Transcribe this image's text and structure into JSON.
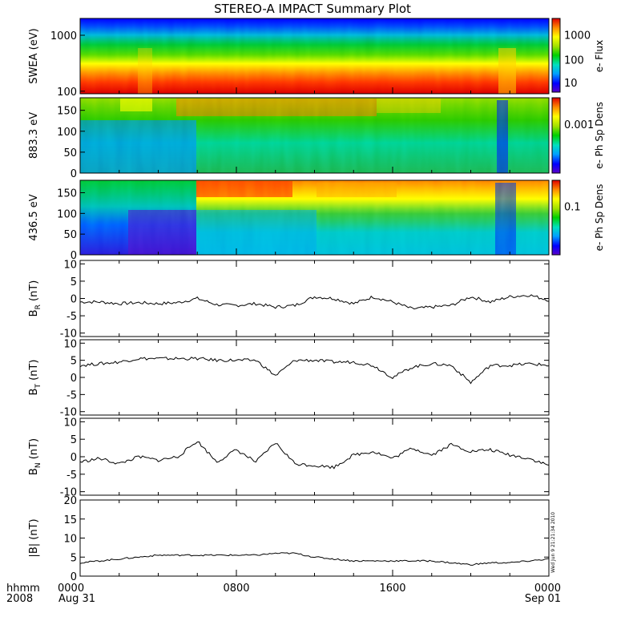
{
  "title": "STEREO-A IMPACT Summary Plot",
  "footer": {
    "format_label": "hhmm",
    "year_label": "2008",
    "date_start": "Aug 31",
    "date_end": "Sep 01",
    "timestamp": "Wed Jun  9 21:21:34 2010"
  },
  "colors": {
    "palette": [
      "#5a00c8",
      "#0000ff",
      "#00a0ff",
      "#00e0c0",
      "#00d000",
      "#a0e000",
      "#ffff00",
      "#ff9000",
      "#e00000"
    ],
    "line": "#000000",
    "background": "#ffffff"
  },
  "chart_data": [
    {
      "type": "heatmap",
      "ylabel": "SWEA (eV)",
      "colorbar_label": "e- Flux",
      "colorbar_ticks": [
        "1000",
        "100",
        "10"
      ],
      "yticks": [
        "1000",
        "100"
      ],
      "yscale": "log",
      "ylim": [
        90,
        2000
      ],
      "description_levels": "high flux at low energy, low flux above ~1000 eV"
    },
    {
      "type": "heatmap",
      "ylabel": "883.3 eV",
      "colorbar_label": "e- Ph Sp Dens",
      "colorbar_ticks": [
        "0.001"
      ],
      "yticks": [
        "0",
        "50",
        "100",
        "150"
      ],
      "ylim": [
        0,
        180
      ]
    },
    {
      "type": "heatmap",
      "ylabel": "436.5 eV",
      "colorbar_label": "e- Ph Sp Dens",
      "colorbar_ticks": [
        "0.1"
      ],
      "yticks": [
        "0",
        "50",
        "100",
        "150"
      ],
      "ylim": [
        0,
        180
      ]
    },
    {
      "type": "line",
      "ylabel": "B",
      "ylabel_sub": "R",
      "ylabel_unit": " (nT)",
      "yticks": [
        "10",
        "5",
        "0",
        "-5",
        "-10"
      ],
      "ylim": [
        -11,
        11
      ],
      "x": [
        0,
        1,
        2,
        3,
        4,
        5,
        6,
        7,
        8,
        9,
        10,
        11,
        12,
        13,
        14,
        15,
        16,
        17,
        18,
        19,
        20,
        21,
        22,
        23,
        24
      ],
      "values": [
        -1,
        -1,
        -1.5,
        -1.2,
        -1.5,
        -1.2,
        0,
        -1.8,
        -2,
        -1.5,
        -2.5,
        -2,
        0.5,
        0,
        -1.5,
        0.5,
        -1,
        -3,
        -2.5,
        -2,
        0.5,
        -1,
        0.5,
        1,
        -0.5
      ]
    },
    {
      "type": "line",
      "ylabel": "B",
      "ylabel_sub": "T",
      "ylabel_unit": " (nT)",
      "yticks": [
        "10",
        "5",
        "0",
        "-5",
        "-10"
      ],
      "ylim": [
        -11,
        11
      ],
      "x": [
        0,
        1,
        2,
        3,
        4,
        5,
        6,
        7,
        8,
        9,
        10,
        11,
        12,
        13,
        14,
        15,
        16,
        17,
        18,
        19,
        20,
        21,
        22,
        23,
        24
      ],
      "values": [
        3.5,
        4,
        4.5,
        5.5,
        5.5,
        5.5,
        5.5,
        5,
        5,
        5,
        0.5,
        5,
        5,
        4.5,
        4.5,
        3.5,
        0,
        3,
        4,
        3.5,
        -1.5,
        3.5,
        3.5,
        4,
        3.5
      ]
    },
    {
      "type": "line",
      "ylabel": "B",
      "ylabel_sub": "N",
      "ylabel_unit": " (nT)",
      "yticks": [
        "10",
        "5",
        "0",
        "-5",
        "-10"
      ],
      "ylim": [
        -11,
        11
      ],
      "x": [
        0,
        1,
        2,
        3,
        4,
        5,
        6,
        7,
        8,
        9,
        10,
        11,
        12,
        13,
        14,
        15,
        16,
        17,
        18,
        19,
        20,
        21,
        22,
        23,
        24
      ],
      "values": [
        -1.5,
        -0.5,
        -2,
        0,
        -1,
        0,
        4.5,
        -1.5,
        2,
        -1.5,
        4,
        -2,
        -2.5,
        -3,
        0.5,
        1.5,
        -0.5,
        2.5,
        0.5,
        3.5,
        1.5,
        2,
        0.5,
        -0.5,
        -2.5
      ]
    },
    {
      "type": "line",
      "ylabel": "|B| (nT)",
      "yticks": [
        "20",
        "15",
        "10",
        "5",
        "0"
      ],
      "ylim": [
        0,
        20
      ],
      "x": [
        0,
        1,
        2,
        3,
        4,
        5,
        6,
        7,
        8,
        9,
        10,
        11,
        12,
        13,
        14,
        15,
        16,
        17,
        18,
        19,
        20,
        21,
        22,
        23,
        24
      ],
      "values": [
        3.5,
        4,
        4.5,
        5,
        5.5,
        5.5,
        5.5,
        5.5,
        5.5,
        5.5,
        6,
        6,
        5,
        4.5,
        4,
        4,
        4,
        4,
        4,
        3.5,
        3,
        3.5,
        3.5,
        4,
        4.5
      ]
    }
  ],
  "xaxis": {
    "ticks": [
      "0000",
      "0800",
      "1600",
      "0000"
    ],
    "tick_hours": [
      0,
      8,
      16,
      24
    ],
    "xlim": [
      0,
      24
    ]
  }
}
